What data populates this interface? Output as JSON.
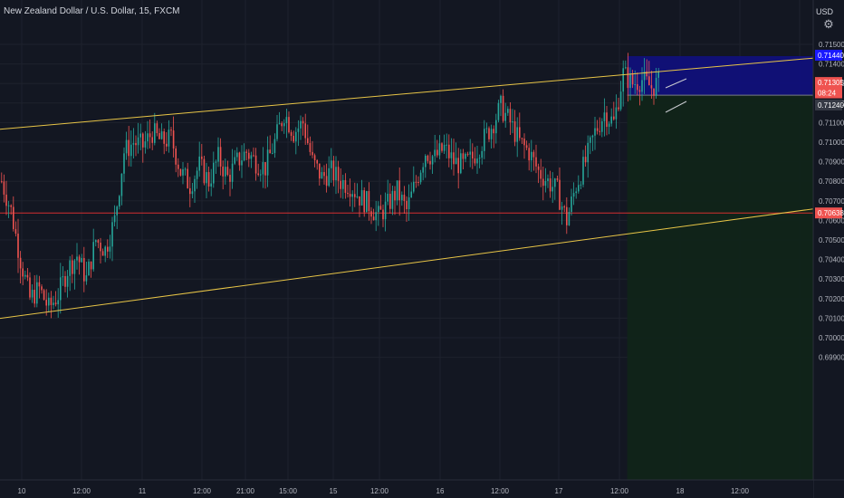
{
  "header": {
    "title": "New Zealand Dollar / U.S. Dollar, 15, FXCM",
    "currency": "USD",
    "settings_icon": "gear-icon"
  },
  "colors": {
    "background": "#131722",
    "grid": "#1e222d",
    "axis_text": "#b2b5be",
    "up": "#26a69a",
    "down": "#ef5350",
    "channel_line": "#e8c547",
    "horizontal_line": "#d32f2f",
    "target_zone": "#10107a",
    "stop_zone": "#102419",
    "current_price_bg": "#ef5350",
    "high_label_bg": "#1a1aff",
    "low_label_bg": "#363a45"
  },
  "chart_data": {
    "type": "candlestick",
    "symbol": "NZDUSD",
    "interval": "15",
    "y_axis": {
      "min": 0.6985,
      "max": 0.7165,
      "ticks": [
        "0.71500",
        "0.71400",
        "0.71300",
        "0.71200",
        "0.71100",
        "0.71000",
        "0.70900",
        "0.70800",
        "0.70700",
        "0.70600",
        "0.70500",
        "0.70400",
        "0.70300",
        "0.70200",
        "0.70100",
        "0.70000",
        "0.69900"
      ]
    },
    "x_axis": {
      "ticks": [
        "10",
        "12:00",
        "11",
        "12:00",
        "21:00",
        "15:00",
        "15",
        "12:00",
        "16",
        "12:00",
        "17",
        "12:00",
        "18",
        "12:00"
      ]
    },
    "price_path": [
      [
        0,
        0.708
      ],
      [
        4,
        0.7065
      ],
      [
        8,
        0.704
      ],
      [
        12,
        0.702
      ],
      [
        16,
        0.7025
      ],
      [
        20,
        0.7015
      ],
      [
        24,
        0.7022
      ],
      [
        28,
        0.7035
      ],
      [
        32,
        0.7042
      ],
      [
        36,
        0.703
      ],
      [
        40,
        0.705
      ],
      [
        44,
        0.7045
      ],
      [
        48,
        0.706
      ],
      [
        52,
        0.7095
      ],
      [
        56,
        0.71
      ],
      [
        60,
        0.7098
      ],
      [
        64,
        0.7105
      ],
      [
        68,
        0.71
      ],
      [
        72,
        0.7102
      ],
      [
        76,
        0.7085
      ],
      [
        80,
        0.7078
      ],
      [
        84,
        0.7088
      ],
      [
        88,
        0.708
      ],
      [
        92,
        0.7092
      ],
      [
        96,
        0.7082
      ],
      [
        100,
        0.709
      ],
      [
        104,
        0.7095
      ],
      [
        108,
        0.709
      ],
      [
        112,
        0.7087
      ],
      [
        116,
        0.71
      ],
      [
        120,
        0.7115
      ],
      [
        124,
        0.7105
      ],
      [
        128,
        0.711
      ],
      [
        132,
        0.709
      ],
      [
        136,
        0.7082
      ],
      [
        140,
        0.7085
      ],
      [
        144,
        0.708
      ],
      [
        148,
        0.7078
      ],
      [
        152,
        0.7072
      ],
      [
        156,
        0.7068
      ],
      [
        160,
        0.7062
      ],
      [
        164,
        0.7068
      ],
      [
        168,
        0.7075
      ],
      [
        172,
        0.7065
      ],
      [
        176,
        0.708
      ],
      [
        180,
        0.7095
      ],
      [
        184,
        0.7092
      ],
      [
        188,
        0.7097
      ],
      [
        192,
        0.709
      ],
      [
        196,
        0.7088
      ],
      [
        200,
        0.7092
      ],
      [
        204,
        0.71
      ],
      [
        208,
        0.7108
      ],
      [
        212,
        0.7118
      ],
      [
        216,
        0.711
      ],
      [
        220,
        0.71
      ],
      [
        224,
        0.7095
      ],
      [
        228,
        0.7085
      ],
      [
        232,
        0.708
      ],
      [
        236,
        0.7075
      ],
      [
        240,
        0.706
      ],
      [
        244,
        0.7078
      ],
      [
        248,
        0.709
      ],
      [
        252,
        0.7105
      ],
      [
        256,
        0.7115
      ],
      [
        260,
        0.711
      ],
      [
        264,
        0.7135
      ],
      [
        268,
        0.713
      ],
      [
        272,
        0.7132
      ],
      [
        276,
        0.7128
      ],
      [
        279,
        0.71305
      ]
    ],
    "drawings": {
      "channel_upper": {
        "from": [
          -30,
          0.71035
        ],
        "to": [
          355,
          0.7144
        ]
      },
      "channel_lower": {
        "from": [
          -12,
          0.7008
        ],
        "to": [
          352,
          0.7067
        ]
      },
      "horizontal_level": 0.70638,
      "position_long": {
        "entry": 0.7124,
        "target": 0.7144,
        "stop": 0.6985,
        "start_bar": 266
      }
    },
    "price_labels": {
      "target": "0.71440",
      "current": "0.71305",
      "countdown": "08:24",
      "entry": "0.71240",
      "level": "0.70638"
    }
  }
}
